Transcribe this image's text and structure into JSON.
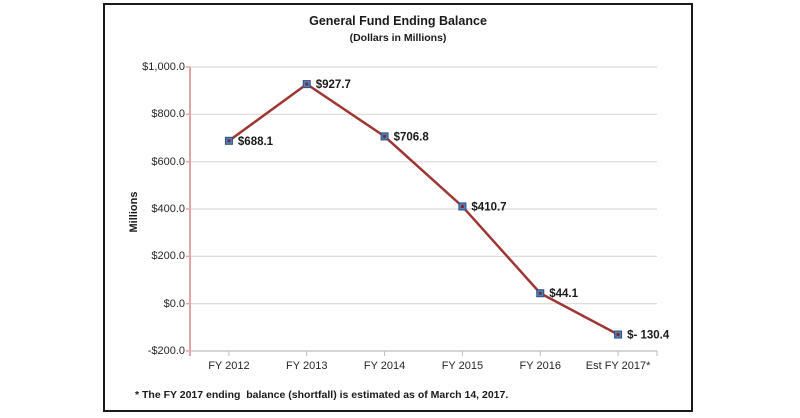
{
  "chart_data": {
    "type": "line",
    "title": "General Fund Ending Balance",
    "subtitle": "(Dollars in Millions)",
    "ylabel": "Millions",
    "xlabel": "",
    "categories": [
      "FY 2012",
      "FY 2013",
      "FY 2014",
      "FY 2015",
      "FY 2016",
      "Est FY 2017*"
    ],
    "values": [
      688.1,
      927.7,
      706.8,
      410.7,
      44.1,
      -130.4
    ],
    "point_labels": [
      "$688.1",
      "$927.7",
      "$706.8",
      "$410.7",
      "$44.1",
      "$- 130.4"
    ],
    "ylim": [
      -200,
      1000
    ],
    "yticks": [
      {
        "value": 1000,
        "label": "$1,000.0"
      },
      {
        "value": 800,
        "label": "$800.0"
      },
      {
        "value": 600,
        "label": "$600.0"
      },
      {
        "value": 400,
        "label": "$400.0"
      },
      {
        "value": 200,
        "label": "$200.0"
      },
      {
        "value": 0,
        "label": "$0.0"
      },
      {
        "value": -200,
        "label": "-$200.0"
      }
    ],
    "grid": "horizontal",
    "legend": "none",
    "footnote": "* The FY 2017 ending  balance (shortfall) is estimated as of March 14, 2017.",
    "colors": {
      "line": "#9E3634",
      "marker_fill": "#4F81BD",
      "marker_border": "#2F4E7E",
      "marker_center": "#7E2B26",
      "y_axis": "#E0A6A6",
      "x_axis": "#C9C9C9",
      "tick": "#BDBDBD",
      "gridline": "#D9D9D9",
      "text": "#1A1A1A"
    }
  }
}
